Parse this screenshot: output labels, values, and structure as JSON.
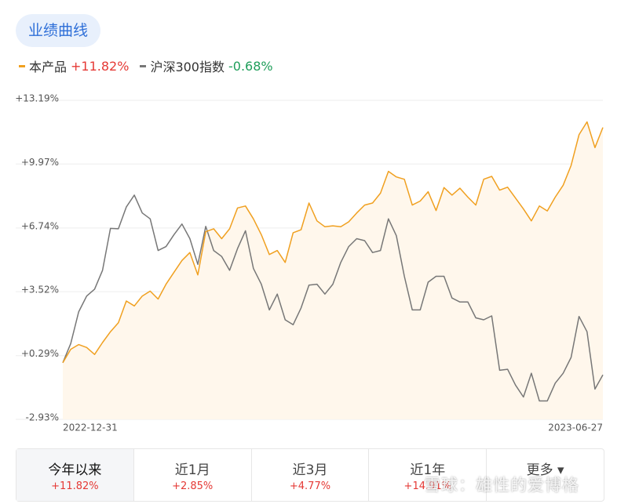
{
  "header": {
    "tag": "业绩曲线"
  },
  "chart_data": {
    "type": "line",
    "categories": [
      "2022-12-31",
      null,
      null,
      null,
      null,
      null,
      null,
      null,
      null,
      null,
      null,
      null,
      null,
      null,
      null,
      null,
      null,
      null,
      null,
      null,
      null,
      null,
      null,
      null,
      null,
      null,
      null,
      null,
      null,
      null,
      null,
      null,
      null,
      null,
      null,
      null,
      null,
      null,
      null,
      null,
      null,
      null,
      null,
      null,
      null,
      null,
      null,
      null,
      null,
      null,
      null,
      null,
      null,
      null,
      null,
      null,
      null,
      null,
      null,
      null,
      null,
      null,
      null,
      null,
      null,
      null,
      null,
      null,
      "2023-06-27"
    ],
    "series": [
      {
        "name": "本产品",
        "return": "+11.82%",
        "color": "#f0a020",
        "fill": "#fff7ec",
        "values": [
          -0.07,
          0.61,
          0.85,
          0.7,
          0.35,
          0.95,
          1.5,
          1.95,
          3.05,
          2.8,
          3.3,
          3.55,
          3.15,
          3.9,
          4.5,
          5.1,
          5.5,
          4.37,
          6.55,
          6.7,
          6.2,
          6.7,
          7.75,
          7.85,
          7.2,
          6.4,
          5.4,
          5.6,
          5.0,
          6.5,
          6.65,
          8.0,
          7.1,
          6.8,
          6.85,
          6.8,
          7.05,
          7.5,
          7.9,
          8.0,
          8.5,
          9.6,
          9.32,
          9.2,
          7.9,
          8.1,
          8.57,
          7.62,
          8.78,
          8.4,
          8.75,
          8.3,
          7.9,
          9.2,
          9.35,
          8.65,
          8.8,
          8.25,
          7.7,
          7.1,
          7.85,
          7.6,
          8.3,
          8.9,
          9.9,
          11.45,
          12.1,
          10.8,
          11.82
        ]
      },
      {
        "name": "沪深300指数",
        "return": "-0.68%",
        "color": "#777777",
        "values": [
          -0.07,
          0.9,
          2.5,
          3.3,
          3.65,
          4.6,
          6.72,
          6.7,
          7.8,
          8.4,
          7.5,
          7.2,
          5.6,
          5.8,
          6.4,
          6.94,
          6.2,
          4.9,
          6.82,
          5.6,
          5.3,
          4.6,
          5.7,
          6.6,
          4.7,
          3.9,
          2.6,
          3.4,
          2.1,
          1.85,
          2.7,
          3.85,
          3.9,
          3.4,
          3.9,
          5.0,
          5.8,
          6.2,
          6.1,
          5.5,
          5.6,
          7.2,
          6.35,
          4.3,
          2.6,
          2.6,
          4.0,
          4.3,
          4.3,
          3.2,
          3.0,
          3.0,
          2.2,
          2.1,
          2.3,
          -0.45,
          -0.4,
          -1.2,
          -1.8,
          -0.6,
          -2.0,
          -2.0,
          -1.1,
          -0.6,
          0.2,
          2.27,
          1.5,
          -1.4,
          -0.68
        ]
      }
    ],
    "ylim": [
      -2.93,
      13.19
    ],
    "yticks": [
      {
        "value": 13.19,
        "label": "+13.19%"
      },
      {
        "value": 9.97,
        "label": "+9.97%"
      },
      {
        "value": 6.74,
        "label": "+6.74%"
      },
      {
        "value": 3.52,
        "label": "+3.52%"
      },
      {
        "value": 0.29,
        "label": "+0.29%"
      },
      {
        "value": -2.93,
        "label": "-2.93%"
      }
    ],
    "grid": true
  },
  "tabs": [
    {
      "label": "今年以来",
      "value": "+11.82%",
      "selected": true
    },
    {
      "label": "近1月",
      "value": "+2.85%"
    },
    {
      "label": "近3月",
      "value": "+4.77%"
    },
    {
      "label": "近1年",
      "value": "+14.91%"
    },
    {
      "label": "更多 ▾"
    }
  ],
  "watermark": "雪球：雄性的爱博格"
}
